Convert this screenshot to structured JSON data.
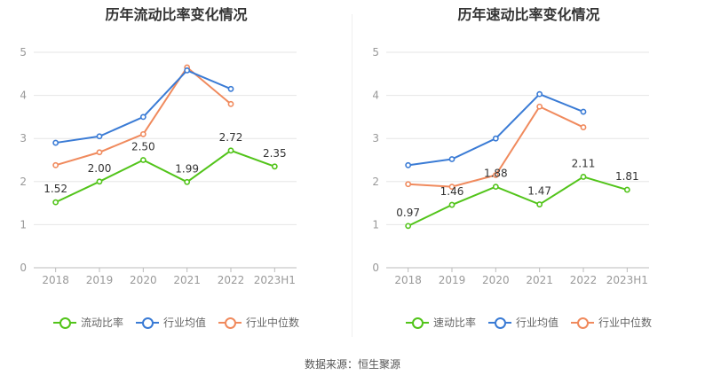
{
  "source": "数据来源：恒生聚源",
  "chart_data": [
    {
      "type": "line",
      "title": "历年流动比率变化情况",
      "categories": [
        "2018",
        "2019",
        "2020",
        "2021",
        "2022",
        "2023H1"
      ],
      "yticks": [
        "0",
        "1",
        "2",
        "3",
        "4",
        "5"
      ],
      "ylim": [
        0,
        5
      ],
      "series": [
        {
          "name": "流动比率",
          "color": "#52c41a",
          "values": [
            1.52,
            2.0,
            2.5,
            1.99,
            2.72,
            2.35
          ],
          "labels": [
            "1.52",
            "2.00",
            "2.50",
            "1.99",
            "2.72",
            "2.35"
          ]
        },
        {
          "name": "行业均值",
          "color": "#3a7bd5",
          "values": [
            2.9,
            3.05,
            3.5,
            4.58,
            4.15,
            null
          ]
        },
        {
          "name": "行业中位数",
          "color": "#f08a5d",
          "values": [
            2.38,
            2.68,
            3.1,
            4.65,
            3.8,
            null
          ]
        }
      ]
    },
    {
      "type": "line",
      "title": "历年速动比率变化情况",
      "categories": [
        "2018",
        "2019",
        "2020",
        "2021",
        "2022",
        "2023H1"
      ],
      "yticks": [
        "0",
        "1",
        "2",
        "3",
        "4",
        "5"
      ],
      "ylim": [
        0,
        5
      ],
      "series": [
        {
          "name": "速动比率",
          "color": "#52c41a",
          "values": [
            0.97,
            1.46,
            1.88,
            1.47,
            2.11,
            1.81
          ],
          "labels": [
            "0.97",
            "1.46",
            "1.88",
            "1.47",
            "2.11",
            "1.81"
          ]
        },
        {
          "name": "行业均值",
          "color": "#3a7bd5",
          "values": [
            2.38,
            2.52,
            3.0,
            4.03,
            3.62,
            null
          ]
        },
        {
          "name": "行业中位数",
          "color": "#f08a5d",
          "values": [
            1.94,
            1.88,
            2.15,
            3.74,
            3.26,
            null
          ]
        }
      ]
    }
  ]
}
